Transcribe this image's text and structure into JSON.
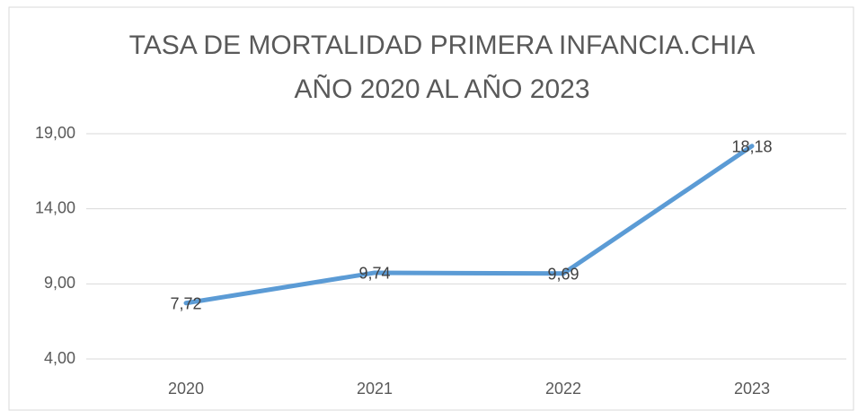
{
  "chart_data": {
    "type": "line",
    "title": [
      "TASA DE MORTALIDAD PRIMERA INFANCIA.CHIA",
      "AÑO  2020 AL AÑO 2023"
    ],
    "categories": [
      "2020",
      "2021",
      "2022",
      "2023"
    ],
    "series": [
      {
        "name": "TASA DE MORTALIDAD PRIMERA INFANCIA",
        "color": "#5b9bd5",
        "values": [
          7.72,
          9.74,
          9.69,
          18.18
        ],
        "value_labels": [
          "7,72",
          "9,74",
          "9,69",
          "18,18"
        ]
      }
    ],
    "ylim": [
      4,
      19
    ],
    "yticks": [
      {
        "value": 4,
        "label": "4,00"
      },
      {
        "value": 9,
        "label": "9,00"
      },
      {
        "value": 14,
        "label": "14,00"
      },
      {
        "value": 19,
        "label": "19,00"
      }
    ],
    "grid": true
  }
}
